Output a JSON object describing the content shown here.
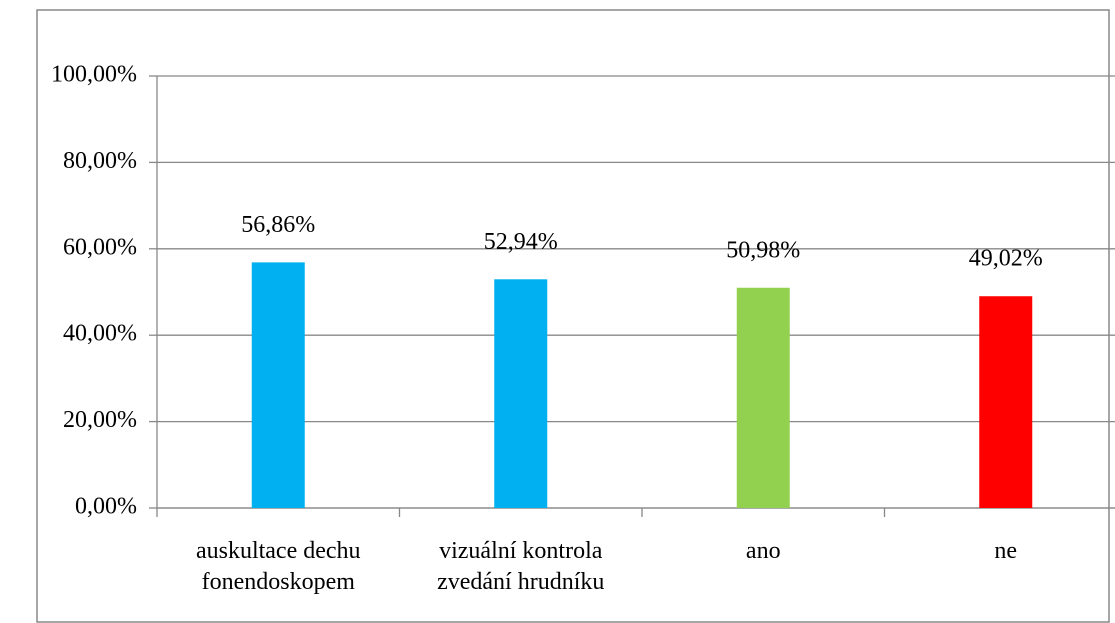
{
  "chart_data": {
    "type": "bar",
    "categories": [
      "auskultace dechu fonendoskopem",
      "vizuální kontrola zvedání hrudníku",
      "ano",
      "ne"
    ],
    "values": [
      56.86,
      52.94,
      50.98,
      49.02
    ],
    "value_labels": [
      "56,86%",
      "52,94%",
      "50,98%",
      "49,02%"
    ],
    "colors": [
      "#00b0f0",
      "#00b0f0",
      "#92d050",
      "#ff0000"
    ],
    "ylim": [
      0,
      100
    ],
    "yticks": [
      {
        "value": 0,
        "label": "0,00%"
      },
      {
        "value": 20,
        "label": "20,00%"
      },
      {
        "value": 40,
        "label": "40,00%"
      },
      {
        "value": 60,
        "label": "60,00%"
      },
      {
        "value": 80,
        "label": "80,00%"
      },
      {
        "value": 100,
        "label": "100,00%"
      }
    ],
    "grid": true
  }
}
